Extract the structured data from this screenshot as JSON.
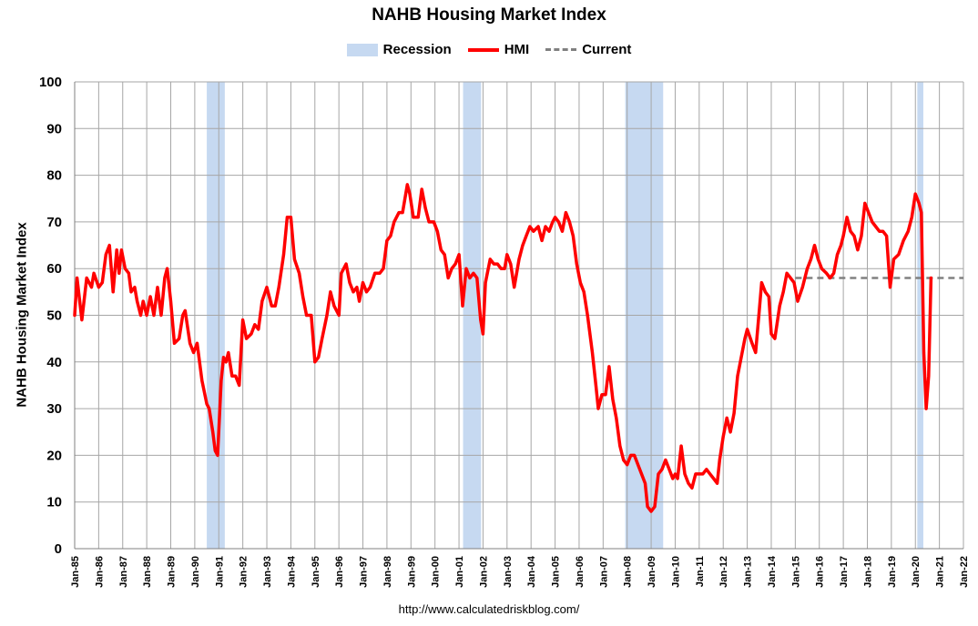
{
  "chart_data": {
    "type": "line",
    "title": "NAHB Housing Market Index",
    "ylabel": "NAHB Housing Market Index",
    "xlabel": "",
    "ylim": [
      0,
      100
    ],
    "yticks": [
      0,
      10,
      20,
      30,
      40,
      50,
      60,
      70,
      80,
      90,
      100
    ],
    "xlim": [
      1985.0,
      2022.0
    ],
    "xtick_labels": [
      "Jan-85",
      "Jan-86",
      "Jan-87",
      "Jan-88",
      "Jan-89",
      "Jan-90",
      "Jan-91",
      "Jan-92",
      "Jan-93",
      "Jan-94",
      "Jan-95",
      "Jan-96",
      "Jan-97",
      "Jan-98",
      "Jan-99",
      "Jan-00",
      "Jan-01",
      "Jan-02",
      "Jan-03",
      "Jan-04",
      "Jan-05",
      "Jan-06",
      "Jan-07",
      "Jan-08",
      "Jan-09",
      "Jan-10",
      "Jan-11",
      "Jan-12",
      "Jan-13",
      "Jan-14",
      "Jan-15",
      "Jan-16",
      "Jan-17",
      "Jan-18",
      "Jan-19",
      "Jan-20",
      "Jan-21",
      "Jan-22"
    ],
    "grid": true,
    "legend": [
      {
        "label": "Recession",
        "color": "#c6d9f1"
      },
      {
        "label": "HMI",
        "color": "#ff0000"
      },
      {
        "label": "Current",
        "color": "#808080"
      }
    ],
    "recessions": [
      [
        1990.5,
        1991.25
      ],
      [
        2001.17,
        2001.92
      ],
      [
        2007.92,
        2009.5
      ],
      [
        2020.08,
        2020.33
      ]
    ],
    "current": {
      "value": 58,
      "x_start": 2015.0,
      "x_end": 2022.0
    },
    "series": [
      {
        "name": "HMI",
        "color": "#ff0000",
        "points": [
          [
            1985.0,
            50
          ],
          [
            1985.1,
            58
          ],
          [
            1985.3,
            49
          ],
          [
            1985.5,
            58
          ],
          [
            1985.7,
            56
          ],
          [
            1985.8,
            59
          ],
          [
            1986.0,
            56
          ],
          [
            1986.15,
            57
          ],
          [
            1986.3,
            63
          ],
          [
            1986.45,
            65
          ],
          [
            1986.6,
            55
          ],
          [
            1986.75,
            64
          ],
          [
            1986.85,
            59
          ],
          [
            1986.95,
            64
          ],
          [
            1987.1,
            60
          ],
          [
            1987.25,
            59
          ],
          [
            1987.35,
            55
          ],
          [
            1987.5,
            56
          ],
          [
            1987.6,
            53
          ],
          [
            1987.75,
            50
          ],
          [
            1987.85,
            53
          ],
          [
            1988.0,
            50
          ],
          [
            1988.15,
            54
          ],
          [
            1988.3,
            50
          ],
          [
            1988.45,
            56
          ],
          [
            1988.6,
            50
          ],
          [
            1988.75,
            58
          ],
          [
            1988.85,
            60
          ],
          [
            1989.0,
            53
          ],
          [
            1989.15,
            44
          ],
          [
            1989.35,
            45
          ],
          [
            1989.5,
            50
          ],
          [
            1989.6,
            51
          ],
          [
            1989.8,
            44
          ],
          [
            1989.95,
            42
          ],
          [
            1990.1,
            44
          ],
          [
            1990.3,
            36
          ],
          [
            1990.5,
            31
          ],
          [
            1990.6,
            30
          ],
          [
            1990.75,
            25
          ],
          [
            1990.85,
            21
          ],
          [
            1990.95,
            20
          ],
          [
            1991.1,
            36
          ],
          [
            1991.2,
            41
          ],
          [
            1991.3,
            40
          ],
          [
            1991.4,
            42
          ],
          [
            1991.55,
            37
          ],
          [
            1991.7,
            37
          ],
          [
            1991.85,
            35
          ],
          [
            1992.0,
            49
          ],
          [
            1992.15,
            45
          ],
          [
            1992.35,
            46
          ],
          [
            1992.5,
            48
          ],
          [
            1992.65,
            47
          ],
          [
            1992.8,
            53
          ],
          [
            1993.0,
            56
          ],
          [
            1993.2,
            52
          ],
          [
            1993.35,
            52
          ],
          [
            1993.5,
            56
          ],
          [
            1993.7,
            63
          ],
          [
            1993.85,
            71
          ],
          [
            1994.0,
            71
          ],
          [
            1994.15,
            62
          ],
          [
            1994.35,
            59
          ],
          [
            1994.5,
            54
          ],
          [
            1994.65,
            50
          ],
          [
            1994.85,
            50
          ],
          [
            1995.0,
            40
          ],
          [
            1995.15,
            41
          ],
          [
            1995.3,
            45
          ],
          [
            1995.5,
            50
          ],
          [
            1995.65,
            55
          ],
          [
            1995.8,
            52
          ],
          [
            1996.0,
            50
          ],
          [
            1996.1,
            59
          ],
          [
            1996.3,
            61
          ],
          [
            1996.45,
            57
          ],
          [
            1996.6,
            55
          ],
          [
            1996.75,
            56
          ],
          [
            1996.85,
            53
          ],
          [
            1997.0,
            57
          ],
          [
            1997.15,
            55
          ],
          [
            1997.3,
            56
          ],
          [
            1997.5,
            59
          ],
          [
            1997.7,
            59
          ],
          [
            1997.85,
            60
          ],
          [
            1998.0,
            66
          ],
          [
            1998.15,
            67
          ],
          [
            1998.3,
            70
          ],
          [
            1998.5,
            72
          ],
          [
            1998.65,
            72
          ],
          [
            1998.85,
            78
          ],
          [
            1998.95,
            76
          ],
          [
            1999.1,
            71
          ],
          [
            1999.3,
            71
          ],
          [
            1999.45,
            77
          ],
          [
            1999.6,
            73
          ],
          [
            1999.75,
            70
          ],
          [
            1999.95,
            70
          ],
          [
            2000.1,
            68
          ],
          [
            2000.25,
            64
          ],
          [
            2000.4,
            63
          ],
          [
            2000.55,
            58
          ],
          [
            2000.7,
            60
          ],
          [
            2000.85,
            61
          ],
          [
            2001.0,
            63
          ],
          [
            2001.15,
            52
          ],
          [
            2001.3,
            60
          ],
          [
            2001.45,
            58
          ],
          [
            2001.6,
            59
          ],
          [
            2001.75,
            58
          ],
          [
            2001.9,
            49
          ],
          [
            2002.0,
            46
          ],
          [
            2002.1,
            57
          ],
          [
            2002.3,
            62
          ],
          [
            2002.45,
            61
          ],
          [
            2002.6,
            61
          ],
          [
            2002.75,
            60
          ],
          [
            2002.9,
            60
          ],
          [
            2003.0,
            63
          ],
          [
            2003.15,
            61
          ],
          [
            2003.3,
            56
          ],
          [
            2003.5,
            62
          ],
          [
            2003.65,
            65
          ],
          [
            2003.8,
            67
          ],
          [
            2003.95,
            69
          ],
          [
            2004.1,
            68
          ],
          [
            2004.3,
            69
          ],
          [
            2004.45,
            66
          ],
          [
            2004.6,
            69
          ],
          [
            2004.75,
            68
          ],
          [
            2004.9,
            70
          ],
          [
            2005.0,
            71
          ],
          [
            2005.15,
            70
          ],
          [
            2005.3,
            68
          ],
          [
            2005.45,
            72
          ],
          [
            2005.6,
            70
          ],
          [
            2005.75,
            67
          ],
          [
            2005.9,
            61
          ],
          [
            2006.05,
            57
          ],
          [
            2006.2,
            55
          ],
          [
            2006.35,
            50
          ],
          [
            2006.55,
            42
          ],
          [
            2006.7,
            35
          ],
          [
            2006.8,
            30
          ],
          [
            2006.95,
            33
          ],
          [
            2007.1,
            33
          ],
          [
            2007.25,
            39
          ],
          [
            2007.4,
            32
          ],
          [
            2007.55,
            28
          ],
          [
            2007.7,
            22
          ],
          [
            2007.85,
            19
          ],
          [
            2008.0,
            18
          ],
          [
            2008.15,
            20
          ],
          [
            2008.3,
            20
          ],
          [
            2008.45,
            18
          ],
          [
            2008.6,
            16
          ],
          [
            2008.75,
            14
          ],
          [
            2008.85,
            9
          ],
          [
            2009.0,
            8
          ],
          [
            2009.15,
            9
          ],
          [
            2009.3,
            16
          ],
          [
            2009.45,
            17
          ],
          [
            2009.6,
            19
          ],
          [
            2009.75,
            17
          ],
          [
            2009.9,
            15
          ],
          [
            2010.0,
            16
          ],
          [
            2010.1,
            15
          ],
          [
            2010.25,
            22
          ],
          [
            2010.4,
            16
          ],
          [
            2010.55,
            14
          ],
          [
            2010.7,
            13
          ],
          [
            2010.85,
            16
          ],
          [
            2011.0,
            16
          ],
          [
            2011.15,
            16
          ],
          [
            2011.3,
            17
          ],
          [
            2011.45,
            16
          ],
          [
            2011.6,
            15
          ],
          [
            2011.75,
            14
          ],
          [
            2011.85,
            19
          ],
          [
            2012.0,
            24
          ],
          [
            2012.15,
            28
          ],
          [
            2012.3,
            25
          ],
          [
            2012.45,
            29
          ],
          [
            2012.6,
            37
          ],
          [
            2012.75,
            41
          ],
          [
            2012.9,
            45
          ],
          [
            2013.0,
            47
          ],
          [
            2013.2,
            44
          ],
          [
            2013.35,
            42
          ],
          [
            2013.5,
            51
          ],
          [
            2013.6,
            57
          ],
          [
            2013.75,
            55
          ],
          [
            2013.9,
            54
          ],
          [
            2014.0,
            46
          ],
          [
            2014.15,
            45
          ],
          [
            2014.35,
            52
          ],
          [
            2014.5,
            55
          ],
          [
            2014.65,
            59
          ],
          [
            2014.8,
            58
          ],
          [
            2014.95,
            57
          ],
          [
            2015.1,
            53
          ],
          [
            2015.3,
            56
          ],
          [
            2015.5,
            60
          ],
          [
            2015.65,
            62
          ],
          [
            2015.8,
            65
          ],
          [
            2015.95,
            62
          ],
          [
            2016.1,
            60
          ],
          [
            2016.3,
            59
          ],
          [
            2016.45,
            58
          ],
          [
            2016.6,
            59
          ],
          [
            2016.75,
            63
          ],
          [
            2016.9,
            65
          ],
          [
            2017.0,
            67
          ],
          [
            2017.15,
            71
          ],
          [
            2017.3,
            68
          ],
          [
            2017.45,
            67
          ],
          [
            2017.6,
            64
          ],
          [
            2017.75,
            67
          ],
          [
            2017.9,
            74
          ],
          [
            2018.05,
            72
          ],
          [
            2018.2,
            70
          ],
          [
            2018.35,
            69
          ],
          [
            2018.5,
            68
          ],
          [
            2018.65,
            68
          ],
          [
            2018.8,
            67
          ],
          [
            2018.95,
            56
          ],
          [
            2019.1,
            62
          ],
          [
            2019.3,
            63
          ],
          [
            2019.5,
            66
          ],
          [
            2019.7,
            68
          ],
          [
            2019.85,
            71
          ],
          [
            2020.0,
            76
          ],
          [
            2020.15,
            74
          ],
          [
            2020.25,
            72
          ],
          [
            2020.35,
            42
          ],
          [
            2020.45,
            30
          ],
          [
            2020.55,
            37
          ],
          [
            2020.65,
            58
          ]
        ]
      }
    ]
  },
  "source": "http://www.calculatedriskblog.com/",
  "colors": {
    "recession": "#c6d9f1",
    "hmi": "#ff0000",
    "current": "#808080",
    "grid": "#a6a6a6",
    "axis": "#808080"
  }
}
